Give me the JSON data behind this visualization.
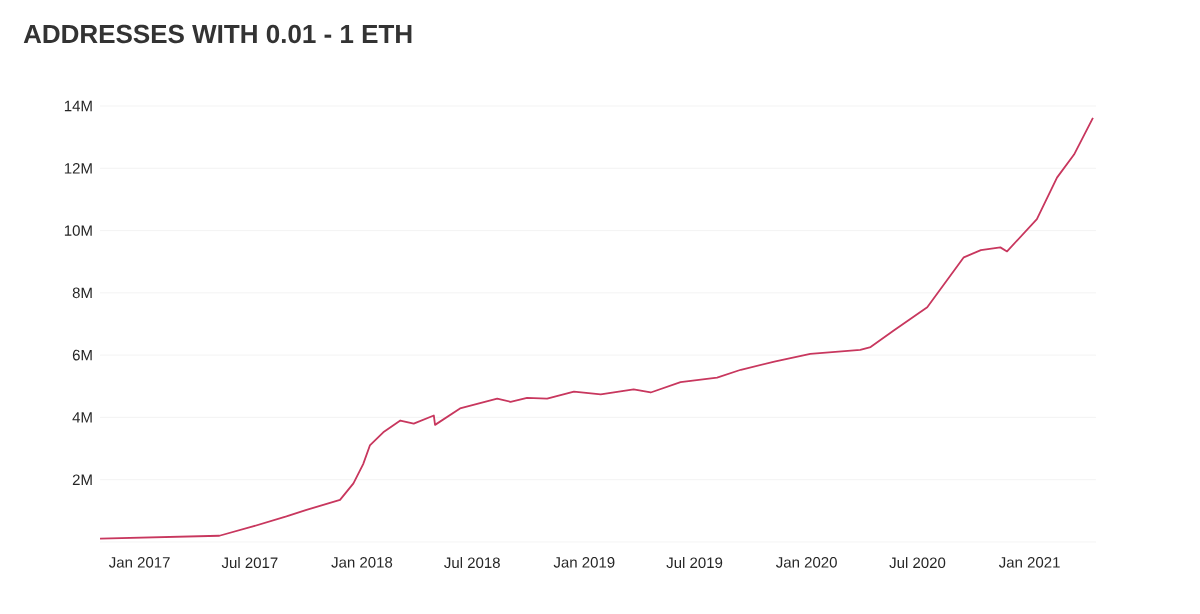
{
  "chart_data": {
    "type": "line",
    "title": "ADDRESSES WITH 0.01 - 1 ETH",
    "x": [
      "2016-10-28",
      "2017-05-12",
      "2017-07-06",
      "2017-08-30",
      "2017-10-02",
      "2017-11-26",
      "2017-12-18",
      "2018-01-03",
      "2018-01-14",
      "2018-02-05",
      "2018-03-05",
      "2018-03-27",
      "2018-04-29",
      "2018-05-01",
      "2018-06-11",
      "2018-08-11",
      "2018-09-02",
      "2018-09-29",
      "2018-11-01",
      "2018-12-15",
      "2019-01-28",
      "2019-03-23",
      "2019-04-20",
      "2019-06-08",
      "2019-08-07",
      "2019-09-15",
      "2019-11-09",
      "2020-01-07",
      "2020-03-29",
      "2020-04-15",
      "2020-05-23",
      "2020-07-17",
      "2020-09-15",
      "2020-10-13",
      "2020-11-14",
      "2020-11-25",
      "2021-01-13",
      "2021-02-15",
      "2021-03-15",
      "2021-04-15"
    ],
    "series": [
      {
        "color": "#c8375e",
        "values": [
          110000,
          200000,
          500000,
          820000,
          1030000,
          1350000,
          1880000,
          2500000,
          3100000,
          3520000,
          3900000,
          3800000,
          4060000,
          3760000,
          4290000,
          4600000,
          4500000,
          4630000,
          4600000,
          4830000,
          4740000,
          4900000,
          4800000,
          5130000,
          5280000,
          5530000,
          5790000,
          6040000,
          6170000,
          6260000,
          6790000,
          7540000,
          9140000,
          9370000,
          9460000,
          9330000,
          10370000,
          11700000,
          12440000,
          13620000
        ]
      }
    ],
    "xlim": [
      "2016-10-28",
      "2021-04-20"
    ],
    "xticks": [
      {
        "value": "2017-01-01",
        "label": "Jan 2017"
      },
      {
        "value": "2017-07-01",
        "label": "Jul 2017"
      },
      {
        "value": "2018-01-01",
        "label": "Jan 2018"
      },
      {
        "value": "2018-07-01",
        "label": "Jul 2018"
      },
      {
        "value": "2019-01-01",
        "label": "Jan 2019"
      },
      {
        "value": "2019-07-01",
        "label": "Jul 2019"
      },
      {
        "value": "2020-01-01",
        "label": "Jan 2020"
      },
      {
        "value": "2020-07-01",
        "label": "Jul 2020"
      },
      {
        "value": "2021-01-01",
        "label": "Jan 2021"
      }
    ],
    "ylim": [
      0,
      14000000
    ],
    "yticks": [
      {
        "value": 0,
        "label": null
      },
      {
        "value": 2000000,
        "label": "2M"
      },
      {
        "value": 4000000,
        "label": "4M"
      },
      {
        "value": 6000000,
        "label": "6M"
      },
      {
        "value": 8000000,
        "label": "8M"
      },
      {
        "value": 10000000,
        "label": "10M"
      },
      {
        "value": 12000000,
        "label": "12M"
      },
      {
        "value": 14000000,
        "label": "14M"
      }
    ],
    "grid": "y",
    "marker": "none",
    "line_style": "solid"
  }
}
